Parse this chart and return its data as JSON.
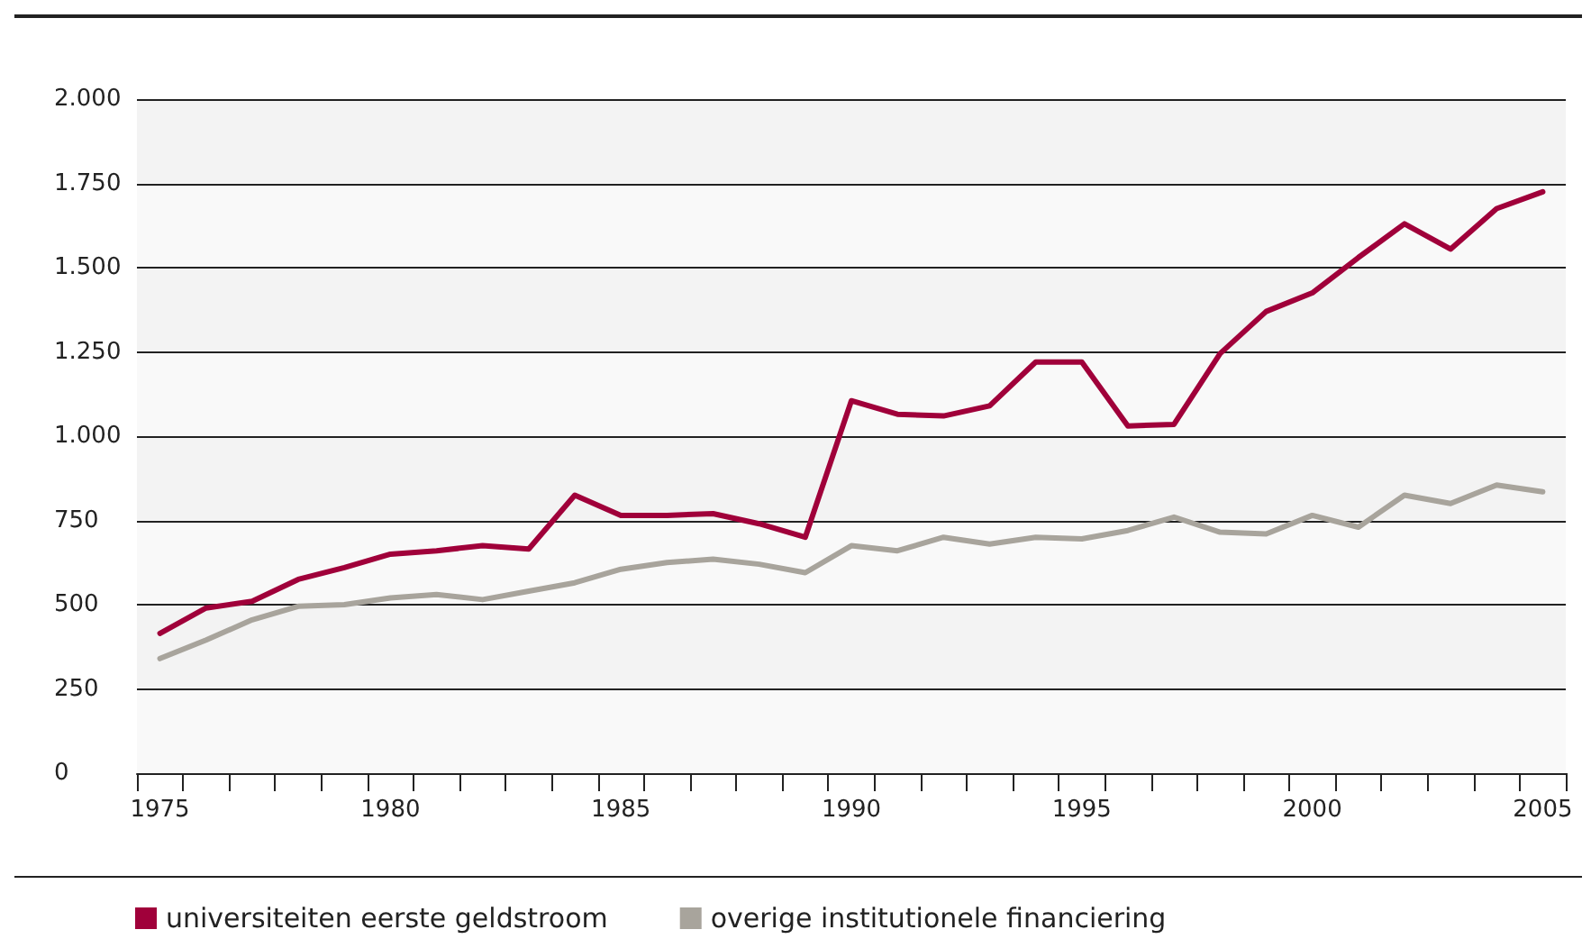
{
  "chart_data": {
    "type": "line",
    "categories": [
      "1975",
      null,
      null,
      null,
      null,
      "1980",
      null,
      null,
      null,
      null,
      "1985",
      null,
      null,
      null,
      null,
      "1990",
      null,
      null,
      null,
      null,
      "1995",
      null,
      null,
      null,
      null,
      "2000",
      null,
      null,
      null,
      null,
      "2005"
    ],
    "series": [
      {
        "name": "universiteiten eerste geldstroom",
        "color": "#a0003a",
        "values": [
          415,
          490,
          510,
          575,
          610,
          650,
          660,
          675,
          665,
          825,
          765,
          765,
          770,
          740,
          700,
          1105,
          1065,
          1060,
          1090,
          1220,
          1220,
          1030,
          1035,
          1245,
          1370,
          1425,
          1530,
          1630,
          1555,
          1675,
          1725
        ]
      },
      {
        "name": "overige institutionele financiering",
        "color": "#a8a49c",
        "values": [
          340,
          395,
          455,
          495,
          500,
          520,
          530,
          515,
          540,
          565,
          605,
          625,
          635,
          620,
          595,
          675,
          660,
          700,
          680,
          700,
          695,
          720,
          760,
          715,
          710,
          765,
          730,
          825,
          800,
          855,
          835
        ]
      }
    ],
    "ylim": [
      0,
      2000
    ],
    "yticks": [
      0,
      250,
      500,
      750,
      {
        "value": 1000,
        "label": "1.000"
      },
      {
        "value": 1250,
        "label": "1.250"
      },
      {
        "value": 1500,
        "label": "1.500"
      },
      {
        "value": 1750,
        "label": "1.750"
      },
      {
        "value": 2000,
        "label": "2.000"
      }
    ],
    "grid": "y",
    "legend": "bottom",
    "marker": "none",
    "line_style": "solid"
  }
}
